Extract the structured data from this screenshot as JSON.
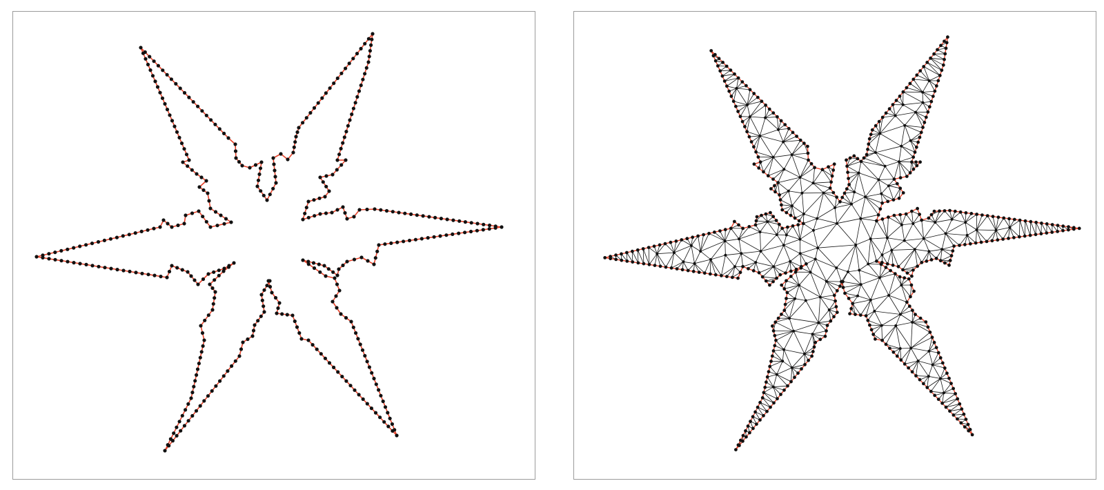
{
  "diagram": {
    "type": "polygon-boundary-and-triangulation",
    "star_points": 6,
    "panels": [
      {
        "name": "boundary",
        "view": "boundary-polygon"
      },
      {
        "name": "triangulation",
        "view": "triangle-mesh"
      }
    ],
    "colors": {
      "background": "#ffffff",
      "frame": "#9a9a9a",
      "vertex": "#111111",
      "boundary_edge": "#e8432a",
      "mesh_edge": "#111111"
    }
  }
}
